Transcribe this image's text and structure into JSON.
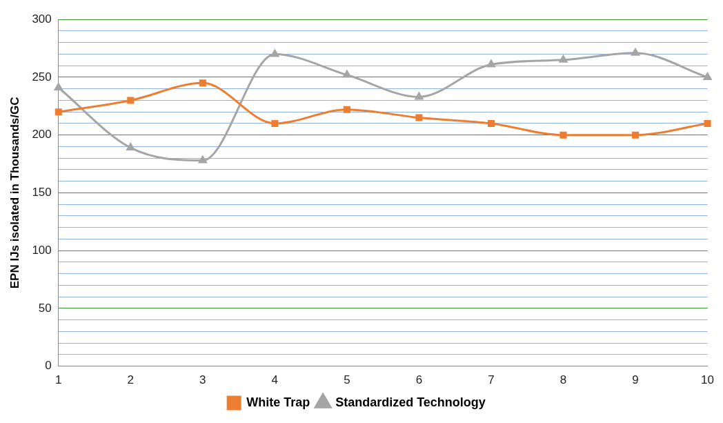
{
  "chart_data": {
    "type": "line",
    "ylabel": "EPN IJs isolated in Thousands/GC",
    "categories": [
      "1",
      "2",
      "3",
      "4",
      "5",
      "6",
      "7",
      "8",
      "9",
      "10"
    ],
    "series": [
      {
        "name": "White Trap",
        "color": "#ed7d31",
        "marker": "square",
        "values": [
          220,
          230,
          245,
          210,
          222,
          215,
          210,
          200,
          200,
          210
        ]
      },
      {
        "name": "Standardized Technology",
        "color": "#a5a5a5",
        "marker": "triangle",
        "values": [
          241,
          189,
          178,
          270,
          252,
          233,
          261,
          265,
          271,
          250
        ]
      }
    ],
    "ylim": [
      0,
      300
    ],
    "yticks": [
      0,
      {
        "value": 10,
        "label": null
      },
      {
        "value": 20,
        "label": null
      },
      {
        "value": 30,
        "label": null
      },
      {
        "value": 40,
        "label": null
      },
      50,
      {
        "value": 60,
        "label": null
      },
      {
        "value": 70,
        "label": null
      },
      {
        "value": 80,
        "label": null
      },
      {
        "value": 90,
        "label": null
      },
      100,
      {
        "value": 110,
        "label": null
      },
      {
        "value": 120,
        "label": null
      },
      {
        "value": 130,
        "label": null
      },
      {
        "value": 140,
        "label": null
      },
      150,
      {
        "value": 160,
        "label": null
      },
      {
        "value": 170,
        "label": null
      },
      {
        "value": 180,
        "label": null
      },
      {
        "value": 190,
        "label": null
      },
      200,
      {
        "value": 210,
        "label": null
      },
      {
        "value": 220,
        "label": null
      },
      {
        "value": 230,
        "label": null
      },
      {
        "value": 240,
        "label": null
      },
      250,
      {
        "value": 260,
        "label": null
      },
      {
        "value": 270,
        "label": null
      },
      {
        "value": 280,
        "label": null
      },
      {
        "value": 290,
        "label": null
      },
      300
    ],
    "grid": "y",
    "legend": "bottom"
  }
}
